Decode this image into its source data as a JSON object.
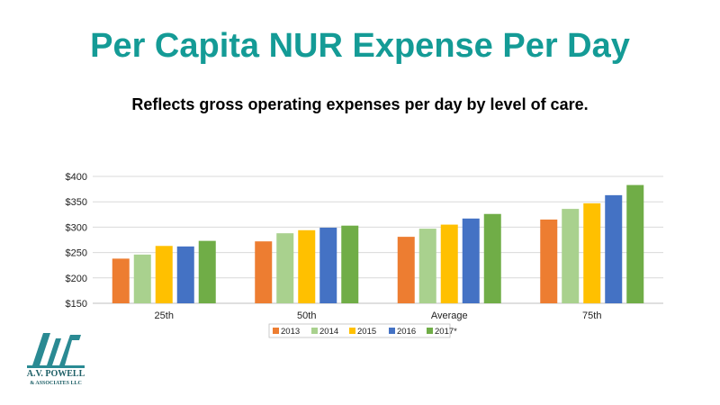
{
  "slide": {
    "title": "Per Capita NUR Expense Per Day",
    "subtitle": "Reflects gross operating expenses per day by level of care."
  },
  "logo": {
    "company_line1": "A.V. POWELL",
    "company_line2": "& ASSOCIATES LLC",
    "icon": "avp-logo-icon",
    "color": "#2a8a93"
  },
  "chart_data": {
    "type": "bar",
    "categories": [
      "25th",
      "50th",
      "Average",
      "75th"
    ],
    "series": [
      {
        "name": "2013",
        "values": [
          238,
          272,
          281,
          315
        ],
        "color": "#ed7d31"
      },
      {
        "name": "2014",
        "values": [
          246,
          288,
          297,
          336
        ],
        "color": "#a9d18e"
      },
      {
        "name": "2015",
        "values": [
          263,
          294,
          305,
          347
        ],
        "color": "#ffc000"
      },
      {
        "name": "2016",
        "values": [
          262,
          299,
          317,
          363
        ],
        "color": "#4472c4"
      },
      {
        "name": "2017*",
        "values": [
          273,
          303,
          326,
          383
        ],
        "color": "#70ad47"
      }
    ],
    "ylim": [
      150,
      400
    ],
    "yticks": [
      150,
      200,
      250,
      300,
      350,
      400
    ],
    "ytick_labels": [
      "$150",
      "$200",
      "$250",
      "$300",
      "$350",
      "$400"
    ],
    "grid": true,
    "legend_position": "bottom",
    "title": "",
    "xlabel": "",
    "ylabel": ""
  }
}
